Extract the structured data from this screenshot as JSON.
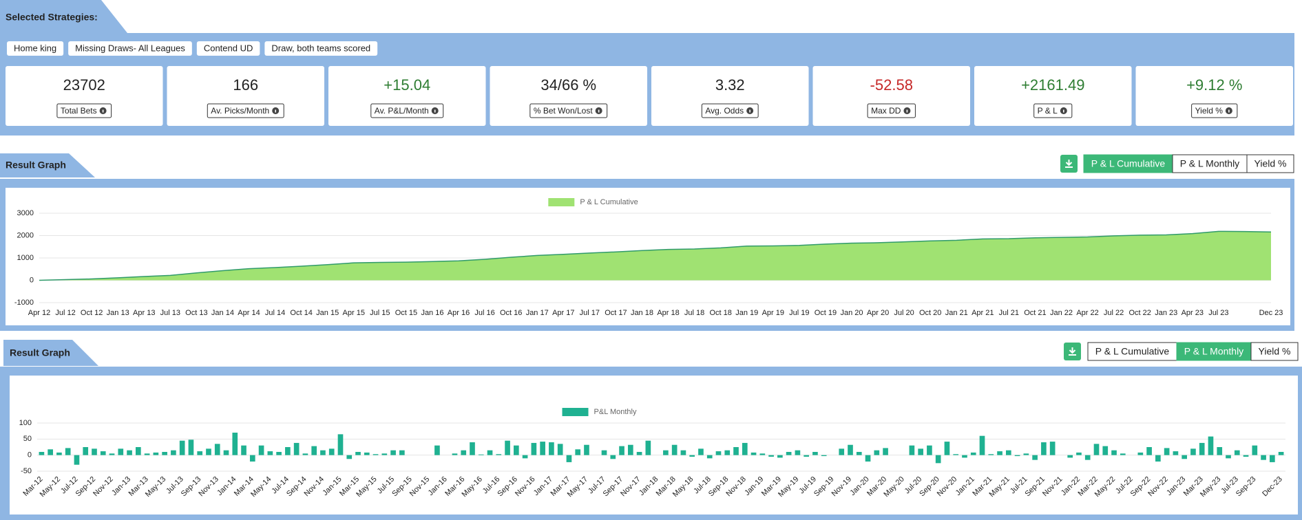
{
  "header": {
    "title": "Selected Strategies:"
  },
  "strategies": [
    "Home king",
    "Missing Draws- All Leagues",
    "Contend UD",
    "Draw, both teams scored"
  ],
  "stats": [
    {
      "value": "23702",
      "label": "Total Bets",
      "color": "#222222"
    },
    {
      "value": "166",
      "label": "Av. Picks/Month",
      "color": "#222222"
    },
    {
      "value": "+15.04",
      "label": "Av. P&L/Month",
      "color": "#2e7d32"
    },
    {
      "value": "34/66 %",
      "label": "% Bet Won/Lost",
      "color": "#222222"
    },
    {
      "value": "3.32",
      "label": "Avg. Odds",
      "color": "#222222"
    },
    {
      "value": "-52.58",
      "label": "Max DD",
      "color": "#c62828"
    },
    {
      "value": "+2161.49",
      "label": "P & L",
      "color": "#2e7d32"
    },
    {
      "value": "+9.12 %",
      "label": "Yield %",
      "color": "#2e7d32"
    }
  ],
  "panels": [
    {
      "title": "Result Graph",
      "buttons": [
        "P & L Cumulative",
        "P & L Monthly",
        "Yield %"
      ],
      "active": 0
    },
    {
      "title": "Result Graph",
      "buttons": [
        "P & L Cumulative",
        "P & L Monthly",
        "Yield %"
      ],
      "active": 1
    }
  ],
  "chart_data": [
    {
      "type": "area",
      "categories": [
        "Apr 12",
        "Jul 12",
        "Oct 12",
        "Jan 13",
        "Apr 13",
        "Jul 13",
        "Oct 13",
        "Jan 14",
        "Apr 14",
        "Jul 14",
        "Oct 14",
        "Jan 15",
        "Apr 15",
        "Jul 15",
        "Oct 15",
        "Jan 16",
        "Apr 16",
        "Jul 16",
        "Oct 16",
        "Jan 17",
        "Apr 17",
        "Jul 17",
        "Oct 17",
        "Jan 18",
        "Apr 18",
        "Jul 18",
        "Oct 18",
        "Jan 19",
        "Apr 19",
        "Jul 19",
        "Oct 19",
        "Jan 20",
        "Apr 20",
        "Jul 20",
        "Oct 20",
        "Jan 21",
        "Apr 21",
        "Jul 21",
        "Oct 21",
        "Jan 22",
        "Apr 22",
        "Jul 22",
        "Oct 22",
        "Jan 23",
        "Apr 23",
        "Jul 23",
        null,
        "Dec 23"
      ],
      "series": [
        {
          "name": "P & L Cumulative",
          "color": "#a0e272",
          "line_color": "#2f9a6a",
          "values": [
            0,
            30,
            60,
            110,
            170,
            220,
            330,
            430,
            520,
            570,
            630,
            700,
            780,
            800,
            810,
            840,
            870,
            940,
            1030,
            1110,
            1160,
            1220,
            1270,
            1330,
            1380,
            1400,
            1450,
            1530,
            1540,
            1560,
            1620,
            1660,
            1680,
            1720,
            1760,
            1790,
            1850,
            1860,
            1900,
            1920,
            1940,
            1990,
            2020,
            2030,
            2090,
            2190,
            2180,
            2160
          ]
        }
      ],
      "ylim": [
        -1000,
        3000
      ],
      "yticks": [
        -1000,
        0,
        1000,
        2000,
        3000
      ],
      "grid": true
    },
    {
      "type": "bar",
      "categories": [
        "Mar-12",
        null,
        "May-12",
        null,
        "Jul-12",
        null,
        "Sep-12",
        null,
        "Nov-12",
        null,
        "Jan-13",
        null,
        "Mar-13",
        null,
        "May-13",
        null,
        "Jul-13",
        null,
        "Sep-13",
        null,
        "Nov-13",
        null,
        "Jan-14",
        null,
        "Mar-14",
        null,
        "May-14",
        null,
        "Jul-14",
        null,
        "Sep-14",
        null,
        "Nov-14",
        null,
        "Jan-15",
        null,
        "Mar-15",
        null,
        "May-15",
        null,
        "Jul-15",
        null,
        "Sep-15",
        null,
        "Nov-15",
        null,
        "Jan-16",
        null,
        "Mar-16",
        null,
        "May-16",
        null,
        "Jul-16",
        null,
        "Sep-16",
        null,
        "Nov-16",
        null,
        "Jan-17",
        null,
        "Mar-17",
        null,
        "May-17",
        null,
        "Jul-17",
        null,
        "Sep-17",
        null,
        "Nov-17",
        null,
        "Jan-18",
        null,
        "Mar-18",
        null,
        "May-18",
        null,
        "Jul-18",
        null,
        "Sep-18",
        null,
        "Nov-18",
        null,
        "Jan-19",
        null,
        "Mar-19",
        null,
        "May-19",
        null,
        "Jul-19",
        null,
        "Sep-19",
        null,
        "Nov-19",
        null,
        "Jan-20",
        null,
        "Mar-20",
        null,
        "May-20",
        null,
        "Jul-20",
        null,
        "Sep-20",
        null,
        "Nov-20",
        null,
        "Jan-21",
        null,
        "Mar-21",
        null,
        "May-21",
        null,
        "Jul-21",
        null,
        "Sep-21",
        null,
        "Nov-21",
        null,
        "Jan-22",
        null,
        "Mar-22",
        null,
        "May-22",
        null,
        "Jul-22",
        null,
        "Sep-22",
        null,
        "Nov-22",
        null,
        "Jan-23",
        null,
        "Mar-23",
        null,
        "May-23",
        null,
        "Jul-23",
        null,
        "Sep-23",
        null,
        null,
        "Dec-23"
      ],
      "series": [
        {
          "name": "P&L Monthly",
          "color": "#1fb191",
          "values": [
            10,
            18,
            8,
            22,
            -30,
            25,
            20,
            12,
            5,
            20,
            15,
            25,
            5,
            8,
            10,
            15,
            45,
            48,
            12,
            20,
            35,
            15,
            70,
            30,
            -20,
            30,
            12,
            10,
            25,
            38,
            5,
            28,
            15,
            20,
            65,
            -12,
            10,
            8,
            3,
            5,
            15,
            15,
            0,
            0,
            0,
            30,
            0,
            5,
            15,
            40,
            2,
            15,
            3,
            45,
            30,
            -10,
            38,
            42,
            40,
            35,
            -22,
            18,
            32,
            0,
            15,
            -12,
            28,
            32,
            10,
            45,
            0,
            15,
            32,
            15,
            -5,
            20,
            -10,
            12,
            15,
            25,
            38,
            8,
            5,
            -5,
            -8,
            10,
            15,
            -5,
            10,
            -3,
            0,
            20,
            32,
            10,
            -20,
            15,
            22,
            0,
            0,
            30,
            20,
            30,
            -25,
            42,
            3,
            -8,
            8,
            60,
            3,
            12,
            15,
            -3,
            5,
            -15,
            40,
            42,
            0,
            -8,
            8,
            -15,
            35,
            28,
            15,
            5,
            0,
            8,
            25,
            -20,
            22,
            12,
            -12,
            20,
            38,
            58,
            25,
            -10,
            15,
            -5,
            30,
            -15,
            -22,
            10
          ]
        }
      ],
      "ylim": [
        -50,
        100
      ],
      "yticks": [
        -50,
        0,
        50,
        100
      ],
      "grid": true
    }
  ]
}
